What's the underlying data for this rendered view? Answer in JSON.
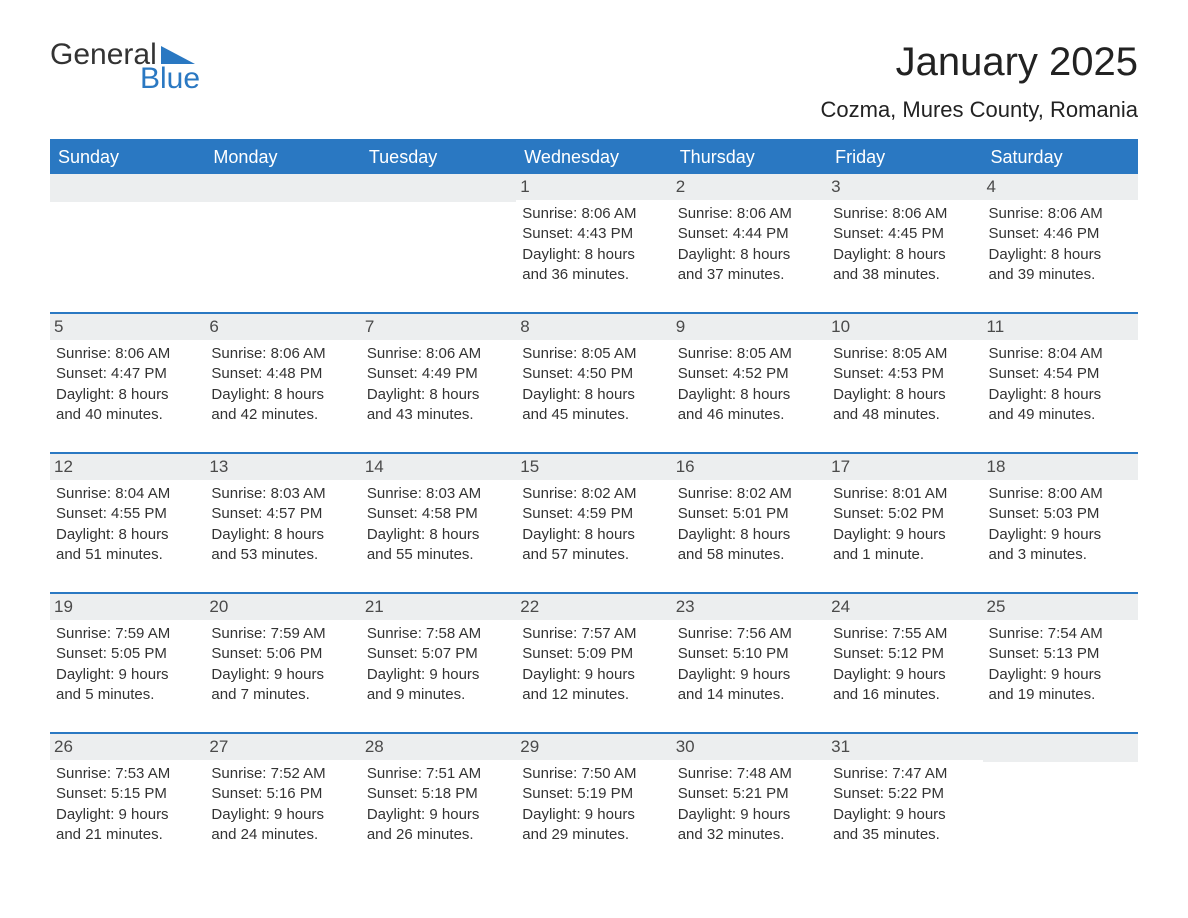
{
  "brand": {
    "word1": "General",
    "word2": "Blue"
  },
  "title": "January 2025",
  "subtitle": "Cozma, Mures County, Romania",
  "colors": {
    "accent": "#2a78c2",
    "weekday_bg": "#2a78c2",
    "weekday_fg": "#ffffff",
    "daynum_bg": "#eceeef",
    "daynum_fg": "#4a4a4a",
    "page_bg": "#ffffff",
    "text": "#333333"
  },
  "layout": {
    "columns": 7,
    "rows": 5,
    "title_fontsize": 40,
    "subtitle_fontsize": 22,
    "weekday_fontsize": 18,
    "body_fontsize": 15
  },
  "weekdays": [
    "Sunday",
    "Monday",
    "Tuesday",
    "Wednesday",
    "Thursday",
    "Friday",
    "Saturday"
  ],
  "weeks": [
    [
      {
        "day": "",
        "lines": []
      },
      {
        "day": "",
        "lines": []
      },
      {
        "day": "",
        "lines": []
      },
      {
        "day": "1",
        "lines": [
          "Sunrise: 8:06 AM",
          "Sunset: 4:43 PM",
          "Daylight: 8 hours",
          "and 36 minutes."
        ]
      },
      {
        "day": "2",
        "lines": [
          "Sunrise: 8:06 AM",
          "Sunset: 4:44 PM",
          "Daylight: 8 hours",
          "and 37 minutes."
        ]
      },
      {
        "day": "3",
        "lines": [
          "Sunrise: 8:06 AM",
          "Sunset: 4:45 PM",
          "Daylight: 8 hours",
          "and 38 minutes."
        ]
      },
      {
        "day": "4",
        "lines": [
          "Sunrise: 8:06 AM",
          "Sunset: 4:46 PM",
          "Daylight: 8 hours",
          "and 39 minutes."
        ]
      }
    ],
    [
      {
        "day": "5",
        "lines": [
          "Sunrise: 8:06 AM",
          "Sunset: 4:47 PM",
          "Daylight: 8 hours",
          "and 40 minutes."
        ]
      },
      {
        "day": "6",
        "lines": [
          "Sunrise: 8:06 AM",
          "Sunset: 4:48 PM",
          "Daylight: 8 hours",
          "and 42 minutes."
        ]
      },
      {
        "day": "7",
        "lines": [
          "Sunrise: 8:06 AM",
          "Sunset: 4:49 PM",
          "Daylight: 8 hours",
          "and 43 minutes."
        ]
      },
      {
        "day": "8",
        "lines": [
          "Sunrise: 8:05 AM",
          "Sunset: 4:50 PM",
          "Daylight: 8 hours",
          "and 45 minutes."
        ]
      },
      {
        "day": "9",
        "lines": [
          "Sunrise: 8:05 AM",
          "Sunset: 4:52 PM",
          "Daylight: 8 hours",
          "and 46 minutes."
        ]
      },
      {
        "day": "10",
        "lines": [
          "Sunrise: 8:05 AM",
          "Sunset: 4:53 PM",
          "Daylight: 8 hours",
          "and 48 minutes."
        ]
      },
      {
        "day": "11",
        "lines": [
          "Sunrise: 8:04 AM",
          "Sunset: 4:54 PM",
          "Daylight: 8 hours",
          "and 49 minutes."
        ]
      }
    ],
    [
      {
        "day": "12",
        "lines": [
          "Sunrise: 8:04 AM",
          "Sunset: 4:55 PM",
          "Daylight: 8 hours",
          "and 51 minutes."
        ]
      },
      {
        "day": "13",
        "lines": [
          "Sunrise: 8:03 AM",
          "Sunset: 4:57 PM",
          "Daylight: 8 hours",
          "and 53 minutes."
        ]
      },
      {
        "day": "14",
        "lines": [
          "Sunrise: 8:03 AM",
          "Sunset: 4:58 PM",
          "Daylight: 8 hours",
          "and 55 minutes."
        ]
      },
      {
        "day": "15",
        "lines": [
          "Sunrise: 8:02 AM",
          "Sunset: 4:59 PM",
          "Daylight: 8 hours",
          "and 57 minutes."
        ]
      },
      {
        "day": "16",
        "lines": [
          "Sunrise: 8:02 AM",
          "Sunset: 5:01 PM",
          "Daylight: 8 hours",
          "and 58 minutes."
        ]
      },
      {
        "day": "17",
        "lines": [
          "Sunrise: 8:01 AM",
          "Sunset: 5:02 PM",
          "Daylight: 9 hours",
          "and 1 minute."
        ]
      },
      {
        "day": "18",
        "lines": [
          "Sunrise: 8:00 AM",
          "Sunset: 5:03 PM",
          "Daylight: 9 hours",
          "and 3 minutes."
        ]
      }
    ],
    [
      {
        "day": "19",
        "lines": [
          "Sunrise: 7:59 AM",
          "Sunset: 5:05 PM",
          "Daylight: 9 hours",
          "and 5 minutes."
        ]
      },
      {
        "day": "20",
        "lines": [
          "Sunrise: 7:59 AM",
          "Sunset: 5:06 PM",
          "Daylight: 9 hours",
          "and 7 minutes."
        ]
      },
      {
        "day": "21",
        "lines": [
          "Sunrise: 7:58 AM",
          "Sunset: 5:07 PM",
          "Daylight: 9 hours",
          "and 9 minutes."
        ]
      },
      {
        "day": "22",
        "lines": [
          "Sunrise: 7:57 AM",
          "Sunset: 5:09 PM",
          "Daylight: 9 hours",
          "and 12 minutes."
        ]
      },
      {
        "day": "23",
        "lines": [
          "Sunrise: 7:56 AM",
          "Sunset: 5:10 PM",
          "Daylight: 9 hours",
          "and 14 minutes."
        ]
      },
      {
        "day": "24",
        "lines": [
          "Sunrise: 7:55 AM",
          "Sunset: 5:12 PM",
          "Daylight: 9 hours",
          "and 16 minutes."
        ]
      },
      {
        "day": "25",
        "lines": [
          "Sunrise: 7:54 AM",
          "Sunset: 5:13 PM",
          "Daylight: 9 hours",
          "and 19 minutes."
        ]
      }
    ],
    [
      {
        "day": "26",
        "lines": [
          "Sunrise: 7:53 AM",
          "Sunset: 5:15 PM",
          "Daylight: 9 hours",
          "and 21 minutes."
        ]
      },
      {
        "day": "27",
        "lines": [
          "Sunrise: 7:52 AM",
          "Sunset: 5:16 PM",
          "Daylight: 9 hours",
          "and 24 minutes."
        ]
      },
      {
        "day": "28",
        "lines": [
          "Sunrise: 7:51 AM",
          "Sunset: 5:18 PM",
          "Daylight: 9 hours",
          "and 26 minutes."
        ]
      },
      {
        "day": "29",
        "lines": [
          "Sunrise: 7:50 AM",
          "Sunset: 5:19 PM",
          "Daylight: 9 hours",
          "and 29 minutes."
        ]
      },
      {
        "day": "30",
        "lines": [
          "Sunrise: 7:48 AM",
          "Sunset: 5:21 PM",
          "Daylight: 9 hours",
          "and 32 minutes."
        ]
      },
      {
        "day": "31",
        "lines": [
          "Sunrise: 7:47 AM",
          "Sunset: 5:22 PM",
          "Daylight: 9 hours",
          "and 35 minutes."
        ]
      },
      {
        "day": "",
        "lines": []
      }
    ]
  ]
}
